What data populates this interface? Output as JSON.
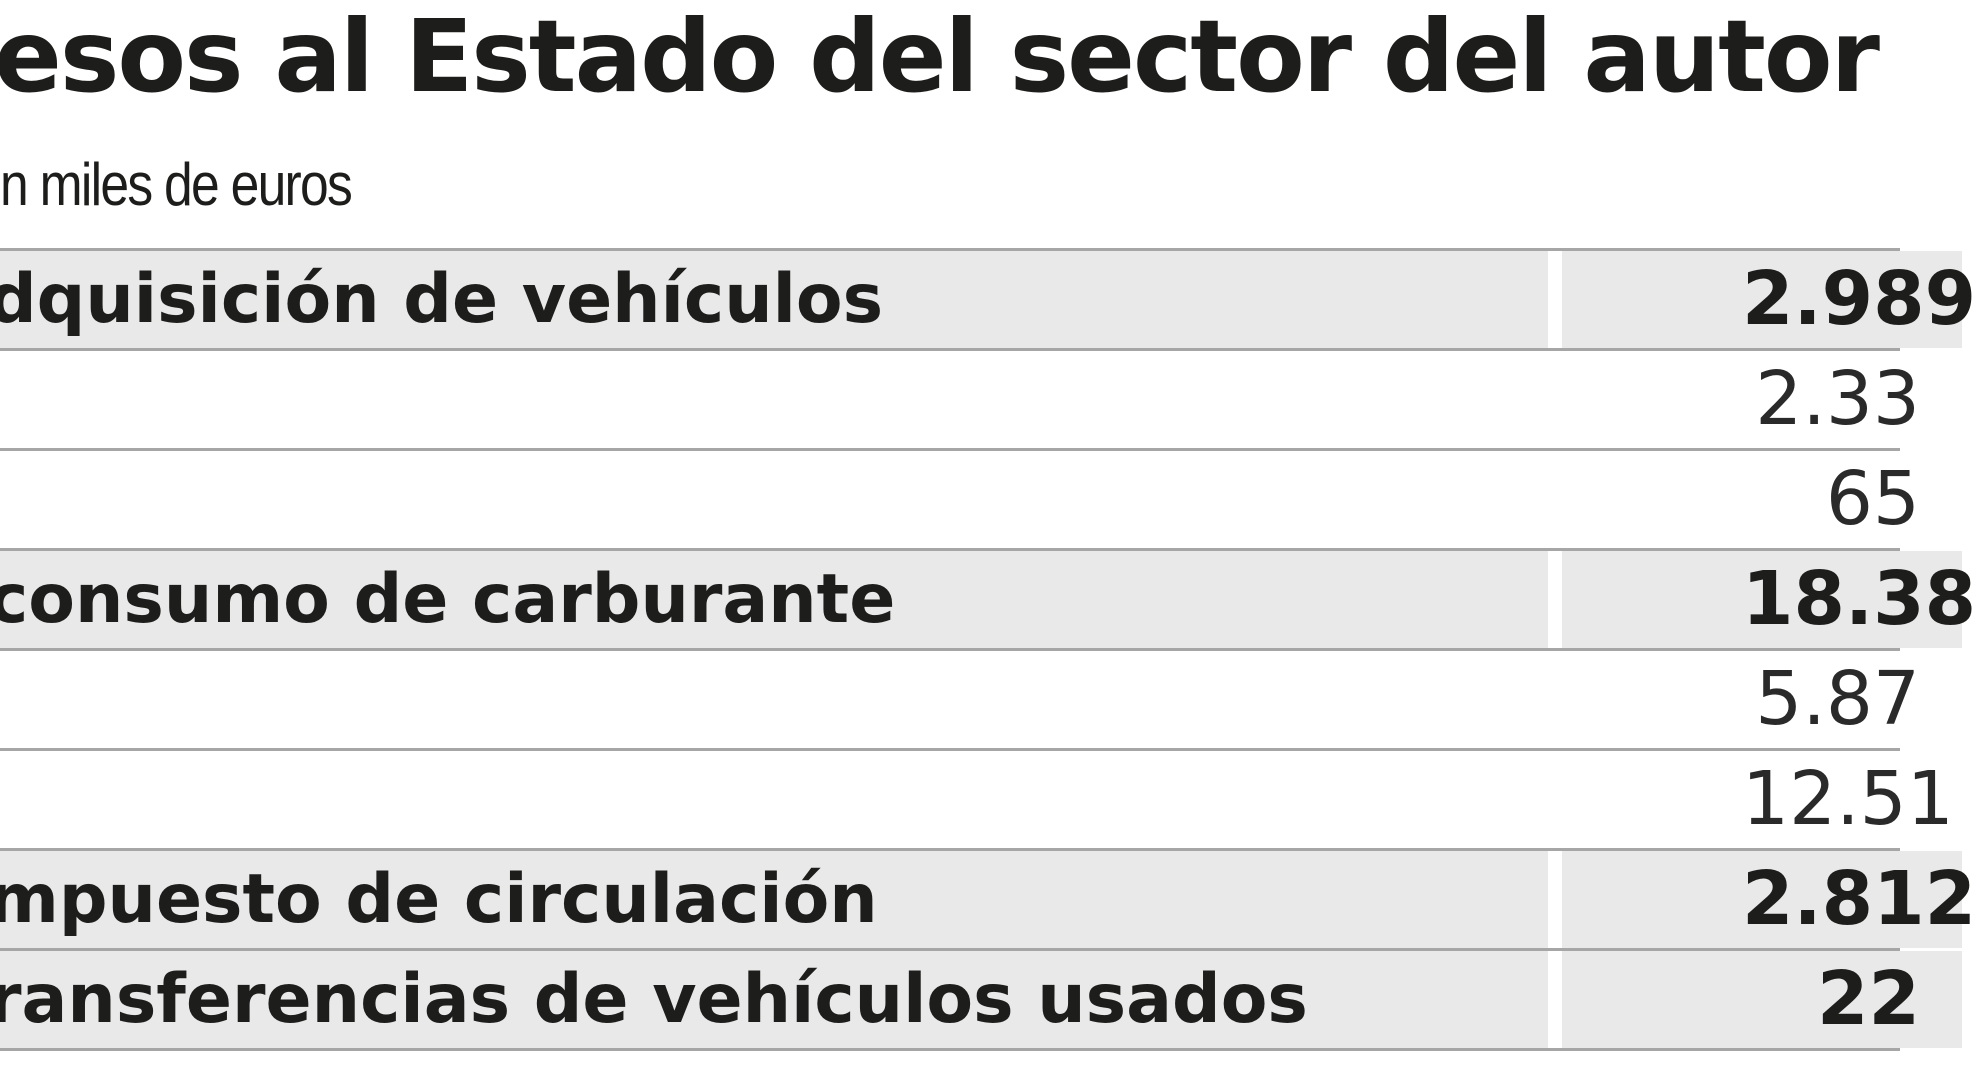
{
  "chart_data": {
    "type": "table",
    "title": "esos al Estado del sector del autor",
    "subtitle": "n miles de euros",
    "rows": [
      {
        "label": "dquisición de vehículos",
        "value": "2.989",
        "bold": true
      },
      {
        "label": "",
        "value": "2.33",
        "bold": false
      },
      {
        "label": "",
        "value": "65",
        "bold": false
      },
      {
        "label": "consumo de carburante",
        "value": "18.38",
        "bold": true
      },
      {
        "label": "",
        "value": "5.87",
        "bold": false
      },
      {
        "label": "",
        "value": "12.51",
        "bold": false
      },
      {
        "label": "mpuesto de circulación",
        "value": "2.812",
        "bold": true
      },
      {
        "label": "ransferencias de vehículos usados",
        "value": "22",
        "bold": true
      }
    ]
  }
}
